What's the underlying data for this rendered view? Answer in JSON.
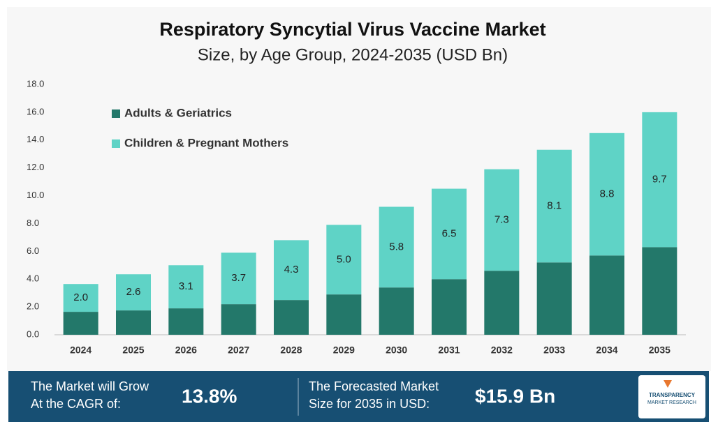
{
  "chart_data": {
    "type": "stacked_bar",
    "title": "Respiratory Syncytial Virus Vaccine Market",
    "subtitle": "Size, by Age Group, 2024-2035 (USD Bn)",
    "categories": [
      "2024",
      "2025",
      "2026",
      "2027",
      "2028",
      "2029",
      "2030",
      "2031",
      "2032",
      "2033",
      "2034",
      "2035"
    ],
    "series": [
      {
        "name": "Adults & Geriatrics",
        "color": "#23786a",
        "values": [
          1.65,
          1.75,
          1.9,
          2.2,
          2.5,
          2.9,
          3.4,
          4.0,
          4.6,
          5.2,
          5.7,
          6.3
        ]
      },
      {
        "name": "Children & Pregnant Mothers",
        "color": "#5fd3c6",
        "values": [
          2.0,
          2.6,
          3.1,
          3.7,
          4.3,
          5.0,
          5.8,
          6.5,
          7.3,
          8.1,
          8.8,
          9.7
        ],
        "value_labels": [
          "2.0",
          "2.6",
          "3.1",
          "3.7",
          "4.3",
          "5.0",
          "5.8",
          "6.5",
          "7.3",
          "8.1",
          "8.8",
          "9.7"
        ]
      }
    ],
    "ylim": [
      0,
      18
    ],
    "yticks": [
      {
        "value": 0,
        "label": "0.0"
      },
      {
        "value": 2,
        "label": "2.0"
      },
      {
        "value": 4,
        "label": "4.0"
      },
      {
        "value": 6,
        "label": "6.0"
      },
      {
        "value": 8,
        "label": "8.0"
      },
      {
        "value": 10,
        "label": "10.0"
      },
      {
        "value": 12,
        "label": "12.0"
      },
      {
        "value": 14,
        "label": "14.0"
      },
      {
        "value": 16,
        "label": "16.0"
      },
      {
        "value": 18,
        "label": "18.0"
      }
    ],
    "legend": "upper left"
  },
  "banner": {
    "cagr_text": [
      "The Market will Grow",
      "At the CAGR of:"
    ],
    "cagr": "13.8%",
    "forecast_text": [
      "The Forecasted Market",
      "Size for 2035 in USD:"
    ],
    "forecast": "$15.9 Bn",
    "logo": [
      "TRANSPARENCY",
      "MARKET RESEARCH"
    ]
  }
}
